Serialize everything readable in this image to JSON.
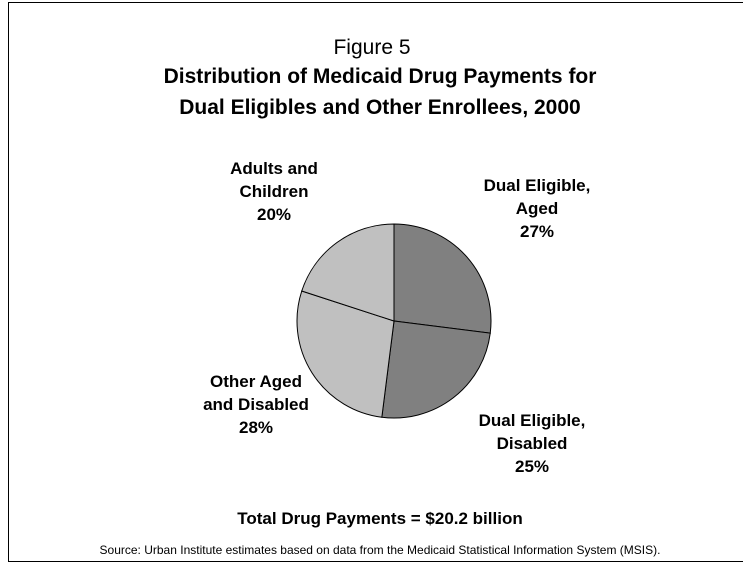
{
  "figure_label": "Figure 5",
  "title_line1": "Distribution of Medicaid Drug Payments for",
  "title_line2": "Dual Eligibles and Other Enrollees, 2000",
  "total_note": "Total Drug Payments = $20.2 billion",
  "source_note": "Source: Urban Institute estimates based on data from the Medicaid Statistical Information System (MSIS).",
  "chart_data": {
    "type": "pie",
    "title": "Distribution of Medicaid Drug Payments for Dual Eligibles and Other Enrollees, 2000",
    "slices": [
      {
        "label_lines": [
          "Dual Eligible,",
          "Aged"
        ],
        "value": 27,
        "value_label": "27%",
        "color": "#808080"
      },
      {
        "label_lines": [
          "Dual Eligible,",
          "Disabled"
        ],
        "value": 25,
        "value_label": "25%",
        "color": "#808080"
      },
      {
        "label_lines": [
          "Other Aged",
          "and Disabled"
        ],
        "value": 28,
        "value_label": "28%",
        "color": "#c0c0c0"
      },
      {
        "label_lines": [
          "Adults and",
          "Children"
        ],
        "value": 20,
        "value_label": "20%",
        "color": "#c0c0c0"
      }
    ],
    "start_angle_deg": 0,
    "direction": "clockwise",
    "legend": "none"
  }
}
